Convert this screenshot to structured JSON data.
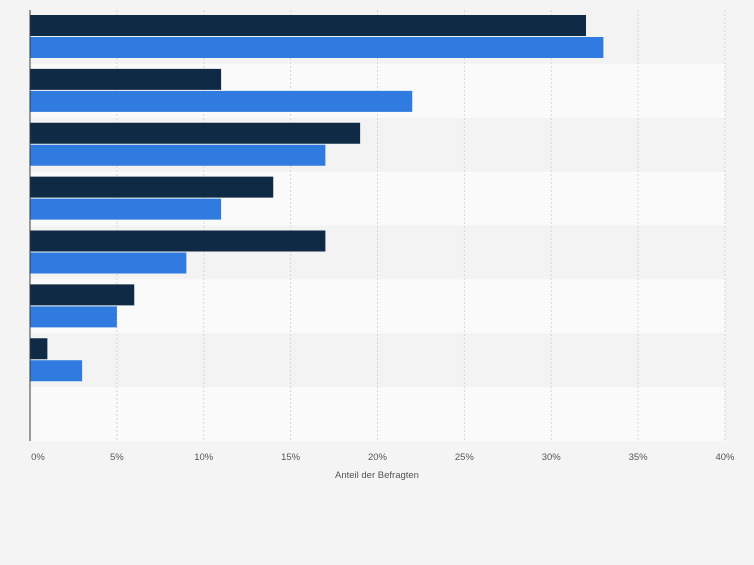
{
  "chart_data": {
    "type": "bar",
    "orientation": "horizontal",
    "categories": [
      "",
      "",
      "",
      "",
      "",
      "",
      "",
      ""
    ],
    "series": [
      {
        "values": [
          32,
          11,
          19,
          14,
          17,
          6,
          1,
          null
        ]
      },
      {
        "values": [
          33,
          22,
          17,
          11,
          9,
          5,
          3,
          null
        ]
      }
    ],
    "colors": [
      "#0f2a44",
      "#2f7be0"
    ],
    "xlabel": "Anteil der Befragten",
    "xlim": [
      0,
      40
    ],
    "xticks": [
      0,
      5,
      10,
      15,
      20,
      25,
      30,
      35,
      40
    ],
    "xtick_labels": [
      "0%",
      "5%",
      "10%",
      "15%",
      "20%",
      "25%",
      "30%",
      "35%",
      "40%"
    ],
    "grid": true,
    "legend": "none"
  }
}
